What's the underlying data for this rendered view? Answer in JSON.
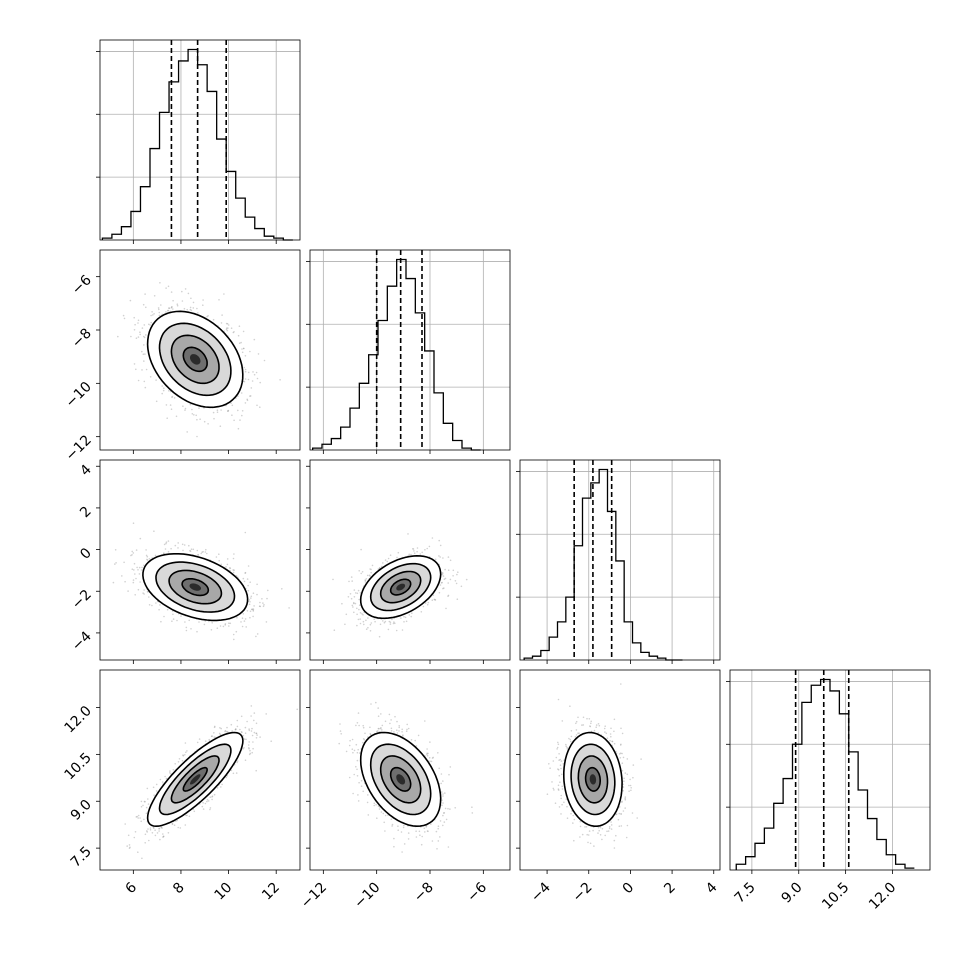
{
  "chart_data": {
    "type": "corner",
    "n_params": 4,
    "params": [
      {
        "range": [
          4.6,
          13.0
        ],
        "ticks": [
          6,
          8,
          10,
          12
        ],
        "tick_labels": [
          "6",
          "8",
          "10",
          "12"
        ],
        "quantiles": [
          7.6,
          8.7,
          9.9
        ],
        "hist_bins": [
          4.7,
          5.1,
          5.5,
          5.9,
          6.3,
          6.7,
          7.1,
          7.5,
          7.9,
          8.3,
          8.7,
          9.1,
          9.5,
          9.9,
          10.3,
          10.7,
          11.1,
          11.5,
          11.9,
          12.3,
          12.7
        ],
        "hist_counts": [
          0.01,
          0.03,
          0.07,
          0.15,
          0.28,
          0.48,
          0.67,
          0.83,
          0.94,
          1.0,
          0.92,
          0.78,
          0.53,
          0.36,
          0.22,
          0.12,
          0.06,
          0.02,
          0.01,
          0.0
        ]
      },
      {
        "range": [
          -12.5,
          -5.0
        ],
        "ticks": [
          -12,
          -10,
          -8,
          -6
        ],
        "tick_labels": [
          "−12",
          "−10",
          "−8",
          "−6"
        ],
        "quantiles": [
          -10.0,
          -9.1,
          -8.3
        ],
        "hist_bins": [
          -12.4,
          -12.05,
          -11.7,
          -11.35,
          -11.0,
          -10.65,
          -10.3,
          -9.95,
          -9.6,
          -9.25,
          -8.9,
          -8.55,
          -8.2,
          -7.85,
          -7.5,
          -7.15,
          -6.8,
          -6.45,
          -6.1
        ],
        "hist_counts": [
          0.01,
          0.03,
          0.06,
          0.12,
          0.22,
          0.35,
          0.5,
          0.68,
          0.86,
          1.0,
          0.9,
          0.72,
          0.52,
          0.3,
          0.14,
          0.05,
          0.01,
          0.0
        ]
      },
      {
        "range": [
          -5.3,
          4.3
        ],
        "ticks": [
          -4,
          -2,
          0,
          2,
          4
        ],
        "tick_labels": [
          "−4",
          "−2",
          "0",
          "2",
          "4"
        ],
        "quantiles": [
          -2.7,
          -1.8,
          -0.9
        ],
        "hist_bins": [
          -5.1,
          -4.7,
          -4.3,
          -3.9,
          -3.5,
          -3.1,
          -2.7,
          -2.3,
          -1.9,
          -1.5,
          -1.1,
          -0.7,
          -0.3,
          0.1,
          0.5,
          0.9,
          1.3,
          1.7,
          2.1,
          2.5
        ],
        "hist_counts": [
          0.01,
          0.02,
          0.05,
          0.12,
          0.2,
          0.33,
          0.6,
          0.85,
          0.93,
          1.0,
          0.78,
          0.52,
          0.2,
          0.09,
          0.04,
          0.02,
          0.01,
          0.0,
          0.0
        ]
      },
      {
        "range": [
          6.8,
          13.2
        ],
        "ticks": [
          7.5,
          9.0,
          10.5,
          12.0
        ],
        "tick_labels": [
          "7.5",
          "9.0",
          "10.5",
          "12.0"
        ],
        "quantiles": [
          8.9,
          9.8,
          10.6
        ],
        "hist_bins": [
          7.0,
          7.3,
          7.6,
          7.9,
          8.2,
          8.5,
          8.8,
          9.1,
          9.4,
          9.7,
          10.0,
          10.3,
          10.6,
          10.9,
          11.2,
          11.5,
          11.8,
          12.1,
          12.4,
          12.7
        ],
        "hist_counts": [
          0.03,
          0.07,
          0.14,
          0.22,
          0.35,
          0.48,
          0.66,
          0.88,
          0.97,
          1.0,
          0.94,
          0.82,
          0.62,
          0.42,
          0.27,
          0.16,
          0.08,
          0.03,
          0.01
        ]
      }
    ],
    "pairs": [
      {
        "i": 1,
        "j": 0,
        "center": [
          8.6,
          -9.1
        ],
        "sigma": [
          1.0,
          0.9
        ],
        "rho": -0.33
      },
      {
        "i": 2,
        "j": 0,
        "center": [
          8.6,
          -1.8
        ],
        "sigma": [
          1.1,
          0.8
        ],
        "rho": -0.37
      },
      {
        "i": 2,
        "j": 1,
        "center": [
          -9.1,
          -1.8
        ],
        "sigma": [
          0.75,
          0.75
        ],
        "rho": 0.42
      },
      {
        "i": 3,
        "j": 0,
        "center": [
          8.6,
          9.7
        ],
        "sigma": [
          1.0,
          0.75
        ],
        "rho": 0.82
      },
      {
        "i": 3,
        "j": 1,
        "center": [
          -9.1,
          9.7
        ],
        "sigma": [
          0.75,
          0.75
        ],
        "rho": -0.42
      },
      {
        "i": 3,
        "j": 2,
        "center": [
          -1.8,
          9.7
        ],
        "sigma": [
          0.7,
          0.75
        ],
        "rho": -0.1
      }
    ],
    "contour_levels_sigma": [
      0.5,
      1.0,
      1.5,
      2.0
    ],
    "grid": true,
    "colors": {
      "contour": "#000000",
      "scatter": "#9a9a9a",
      "grid": "#b0b0b0"
    }
  }
}
